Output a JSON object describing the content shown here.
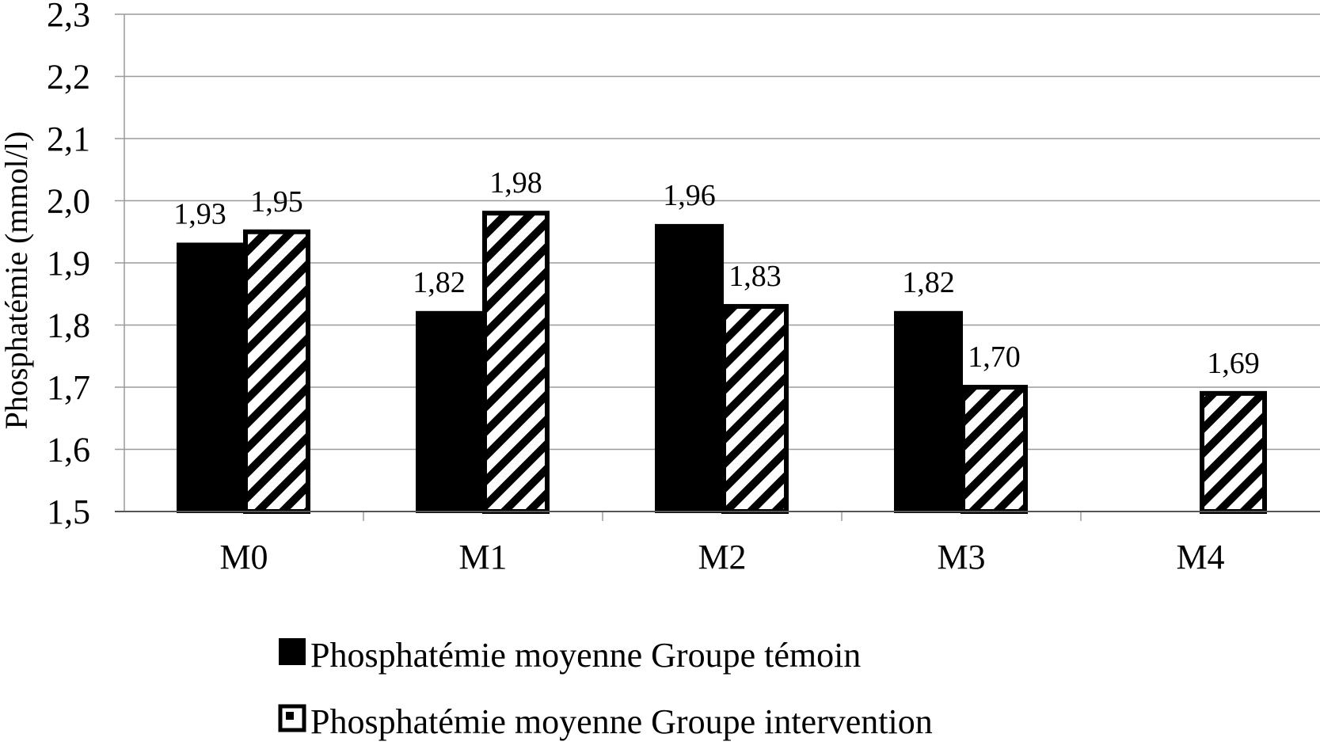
{
  "chart_data": {
    "type": "bar",
    "title": "",
    "xlabel": "",
    "ylabel": "Phosphatémie (mmol/l)",
    "ylim": [
      1.5,
      2.3
    ],
    "yticks": [
      "1,5",
      "1,6",
      "1,7",
      "1,8",
      "1,9",
      "2,0",
      "2,1",
      "2,2",
      "2,3"
    ],
    "ytick_values": [
      1.5,
      1.6,
      1.7,
      1.8,
      1.9,
      2.0,
      2.1,
      2.2,
      2.3
    ],
    "grid": true,
    "legend_position": "bottom",
    "categories": [
      "M0",
      "M1",
      "M2",
      "M3",
      "M4"
    ],
    "series": [
      {
        "name": "Phosphatémie moyenne Groupe témoin",
        "values": [
          1.93,
          1.82,
          1.96,
          1.82,
          null
        ],
        "labels": [
          "1,93",
          "1,82",
          "1,96",
          "1,82",
          ""
        ],
        "fill": "solid",
        "color": "#000000"
      },
      {
        "name": "Phosphatémie moyenne Groupe intervention",
        "values": [
          1.95,
          1.98,
          1.83,
          1.7,
          1.69
        ],
        "labels": [
          "1,95",
          "1,98",
          "1,83",
          "1,70",
          "1,69"
        ],
        "fill": "diagonal-hatch",
        "color": "#000000"
      }
    ]
  }
}
